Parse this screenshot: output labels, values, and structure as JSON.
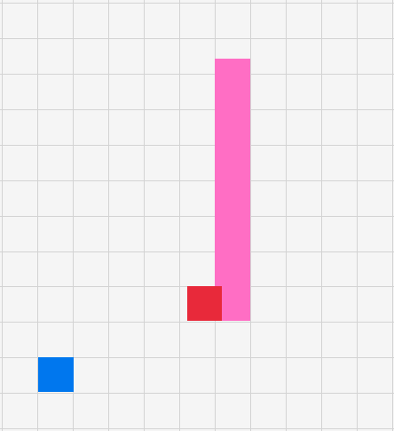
{
  "board": {
    "background": "#f5f5f5",
    "grid_color": "#d3d3d3"
  },
  "pieces": {
    "player": {
      "color": "#0077ee",
      "kind": "square"
    },
    "wall": {
      "color": "#ff6ec4",
      "kind": "vertical-bar"
    },
    "hazard": {
      "color": "#e8293a",
      "kind": "square"
    }
  }
}
